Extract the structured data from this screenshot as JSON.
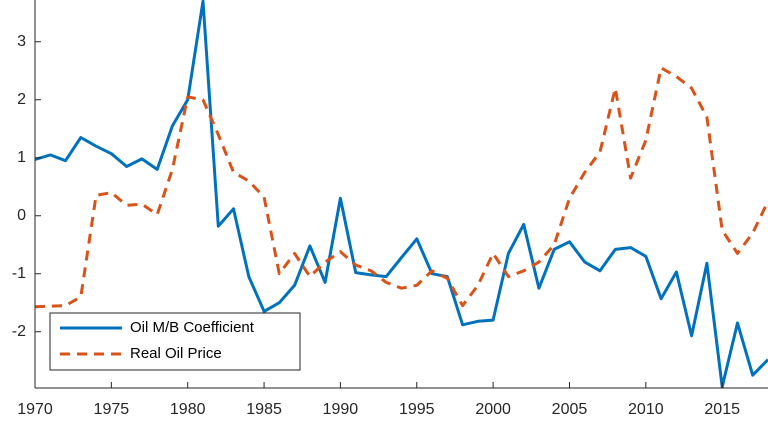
{
  "chart_data": {
    "type": "line",
    "x": [
      1970,
      1971,
      1972,
      1973,
      1974,
      1975,
      1976,
      1977,
      1978,
      1979,
      1980,
      1981,
      1982,
      1983,
      1984,
      1985,
      1986,
      1987,
      1988,
      1989,
      1990,
      1991,
      1992,
      1993,
      1994,
      1995,
      1996,
      1997,
      1998,
      1999,
      2000,
      2001,
      2002,
      2003,
      2004,
      2005,
      2006,
      2007,
      2008,
      2009,
      2010,
      2011,
      2012,
      2013,
      2014,
      2015,
      2016,
      2017,
      2018
    ],
    "series": [
      {
        "name": "Oil M/B Coefficient",
        "color": "#0072BD",
        "dash": "solid",
        "values": [
          0.97,
          1.05,
          0.95,
          1.35,
          1.2,
          1.07,
          0.85,
          0.98,
          0.8,
          1.55,
          2.0,
          3.7,
          -0.18,
          0.12,
          -1.05,
          -1.65,
          -1.5,
          -1.2,
          -0.52,
          -1.15,
          0.3,
          -0.98,
          -1.02,
          -1.05,
          -0.72,
          -0.4,
          -1.0,
          -1.05,
          -1.88,
          -1.82,
          -1.8,
          -0.65,
          -0.15,
          -1.25,
          -0.58,
          -0.45,
          -0.8,
          -0.95,
          -0.58,
          -0.55,
          -0.7,
          -1.43,
          -0.97,
          -2.07,
          -0.82,
          -2.95,
          -1.85,
          -2.75,
          -2.48
        ]
      },
      {
        "name": "Real Oil Price",
        "color": "#D95319",
        "dash": "dashed",
        "values": [
          -1.57,
          -1.56,
          -1.55,
          -1.4,
          0.35,
          0.4,
          0.18,
          0.2,
          0.02,
          0.8,
          2.05,
          2.0,
          1.4,
          0.75,
          0.6,
          0.32,
          -1.0,
          -0.65,
          -1.05,
          -0.8,
          -0.62,
          -0.85,
          -0.95,
          -1.15,
          -1.25,
          -1.2,
          -0.95,
          -1.08,
          -1.55,
          -1.2,
          -0.65,
          -1.05,
          -0.95,
          -0.8,
          -0.5,
          0.3,
          0.75,
          1.1,
          2.2,
          0.65,
          1.3,
          2.55,
          2.4,
          2.2,
          1.7,
          -0.25,
          -0.65,
          -0.3,
          0.25
        ]
      }
    ],
    "xlim": [
      1970,
      2018
    ],
    "xticks": [
      1970,
      1975,
      1980,
      1985,
      1990,
      1995,
      2000,
      2005,
      2010,
      2015
    ],
    "ylim": [
      -2.97,
      3.72
    ],
    "yticks": [
      -2,
      -1,
      0,
      1,
      2,
      3
    ],
    "legend": "southwest"
  }
}
